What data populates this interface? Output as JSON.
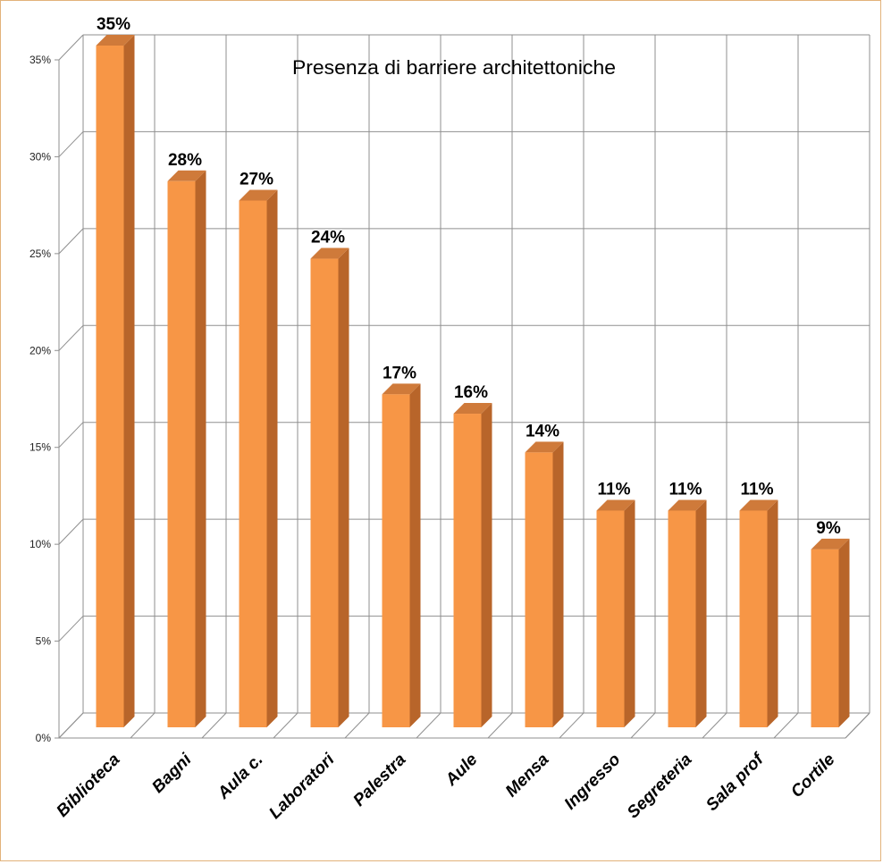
{
  "chart_data": {
    "type": "bar",
    "title": "Presenza di barriere architettoniche",
    "categories": [
      "Biblioteca",
      "Bagni",
      "Aula c.",
      "Laboratori",
      "Palestra",
      "Aule",
      "Mensa",
      "Ingresso",
      "Segreteria",
      "Sala prof",
      "Cortile"
    ],
    "values": [
      35,
      28,
      27,
      24,
      17,
      16,
      14,
      11,
      11,
      11,
      9
    ],
    "value_labels": [
      "35%",
      "28%",
      "27%",
      "24%",
      "17%",
      "16%",
      "14%",
      "11%",
      "11%",
      "11%",
      "9%"
    ],
    "yticks": [
      "0%",
      "5%",
      "10%",
      "15%",
      "20%",
      "25%",
      "30%",
      "35%"
    ],
    "ytick_values": [
      0,
      5,
      10,
      15,
      20,
      25,
      30,
      35
    ],
    "ylim": [
      0,
      35
    ],
    "grid": true,
    "legend": "none",
    "colors": {
      "bar_front": "#f79646",
      "bar_side": "#b8652a",
      "bar_top": "#cf7a3a",
      "grid": "#8f8f8f"
    }
  }
}
